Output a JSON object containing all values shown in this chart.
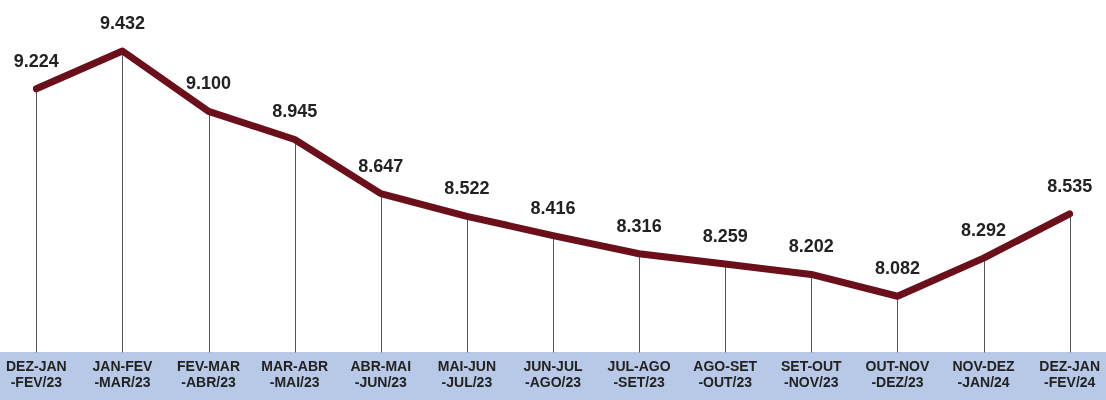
{
  "chart_data": {
    "type": "line",
    "categories": [
      "DEZ-JAN -FEV/23",
      "JAN-FEV -MAR/23",
      "FEV-MAR -ABR/23",
      "MAR-ABR -MAI/23",
      "ABR-MAI -JUN/23",
      "MAI-JUN -JUL/23",
      "JUN-JUL -AGO/23",
      "JUL-AGO -SET/23",
      "AGO-SET -OUT/23",
      "SET-OUT -NOV/23",
      "OUT-NOV -DEZ/23",
      "NOV-DEZ -JAN/24",
      "DEZ-JAN -FEV/24"
    ],
    "series": [
      {
        "color": "#6b0f1a",
        "values": [
          9.224,
          9.432,
          9.1,
          8.945,
          8.647,
          8.522,
          8.416,
          8.316,
          8.259,
          8.202,
          8.082,
          8.292,
          8.535
        ],
        "value_labels": [
          "9.224",
          "9.432",
          "9.100",
          "8.945",
          "8.647",
          "8.522",
          "8.416",
          "8.316",
          "8.259",
          "8.202",
          "8.082",
          "8.292",
          "8.535"
        ]
      }
    ],
    "legend": false,
    "grid": "x",
    "marker": "none",
    "line_style": "solid"
  }
}
